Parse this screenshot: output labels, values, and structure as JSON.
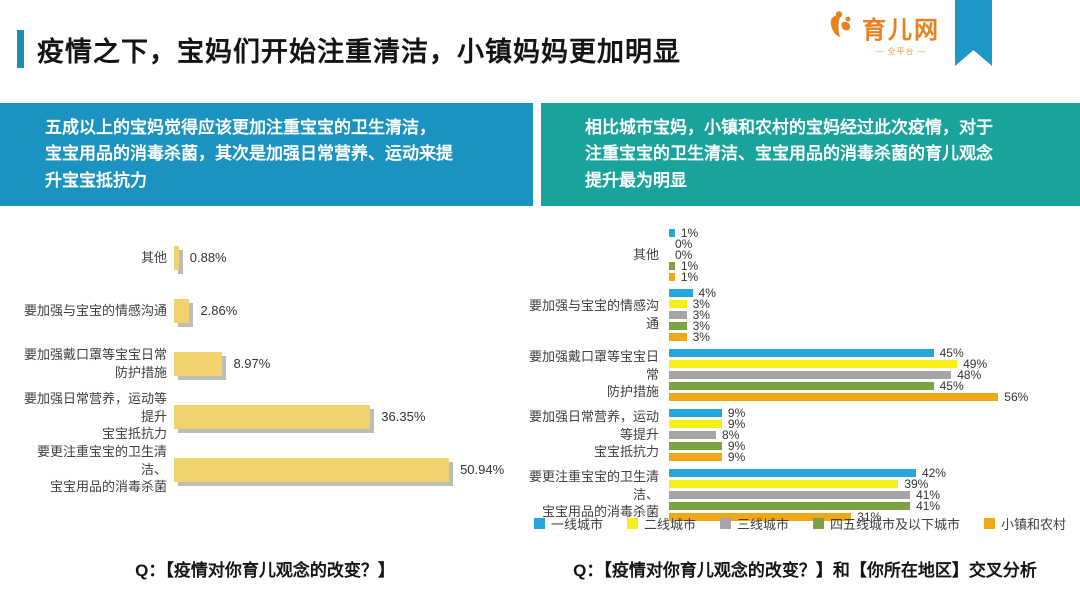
{
  "header": {
    "title": "疫情之下，宝妈们开始注重清洁，小镇妈妈更加明显",
    "logo_name": "育儿网",
    "logo_subtitle": "— 全平台 —"
  },
  "callouts": {
    "left": "五成以上的宝妈觉得应该更加注重宝宝的卫生清洁，\n宝宝用品的消毒杀菌，其次是加强日常营养、运动来提\n升宝宝抵抗力",
    "right": "相比城市宝妈，小镇和农村的宝妈经过此次疫情，对于\n注重宝宝的卫生清洁、宝宝用品的消毒杀菌的育儿观念\n提升最为明显"
  },
  "colors": {
    "accent_blue": "#1b93c0",
    "accent_teal": "#18a39d",
    "left_bar": "#f0d36d",
    "logo_orange": "#e8821e"
  },
  "chart_data": [
    {
      "type": "bar",
      "orientation": "horizontal",
      "title": "",
      "categories": [
        "其他",
        "要加强与宝宝的情感沟通",
        "要加强戴口罩等宝宝日常\n防护措施",
        "要加强日常营养，运动等提升\n宝宝抵抗力",
        "要更注重宝宝的卫生清洁、\n宝宝用品的消毒杀菌"
      ],
      "values": [
        0.88,
        2.86,
        8.97,
        36.35,
        50.94
      ],
      "value_labels": [
        "0.88%",
        "2.86%",
        "8.97%",
        "36.35%",
        "50.94%"
      ],
      "bar_color": "#f0d36d",
      "xlim": [
        0,
        55
      ],
      "grid": false,
      "caption": "Q：【疫情对你育儿观念的改变？】"
    },
    {
      "type": "bar",
      "orientation": "horizontal",
      "title": "",
      "categories": [
        "其他",
        "要加强与宝宝的情感沟通",
        "要加强戴口罩等宝宝日常\n防护措施",
        "要加强日常营养，运动等提升\n宝宝抵抗力",
        "要更注重宝宝的卫生清洁、\n宝宝用品的消毒杀菌"
      ],
      "series": [
        {
          "name": "一线城市",
          "color": "#29a5de",
          "values": [
            1,
            4,
            45,
            9,
            42
          ]
        },
        {
          "name": "二线城市",
          "color": "#f7ef17",
          "values": [
            0,
            3,
            49,
            9,
            39
          ]
        },
        {
          "name": "三线城市",
          "color": "#a5a5a5",
          "values": [
            0,
            3,
            48,
            8,
            41
          ]
        },
        {
          "name": "四五线城市及以下城市",
          "color": "#7ca342",
          "values": [
            1,
            3,
            45,
            9,
            41
          ]
        },
        {
          "name": "小镇和农村",
          "color": "#f0a818",
          "values": [
            1,
            3,
            56,
            9,
            31
          ]
        }
      ],
      "value_suffix": "%",
      "xlim": [
        0,
        60
      ],
      "grid": false,
      "legend_position": "bottom",
      "caption": "Q：【疫情对你育儿观念的改变？】和【你所在地区】交叉分析"
    }
  ]
}
